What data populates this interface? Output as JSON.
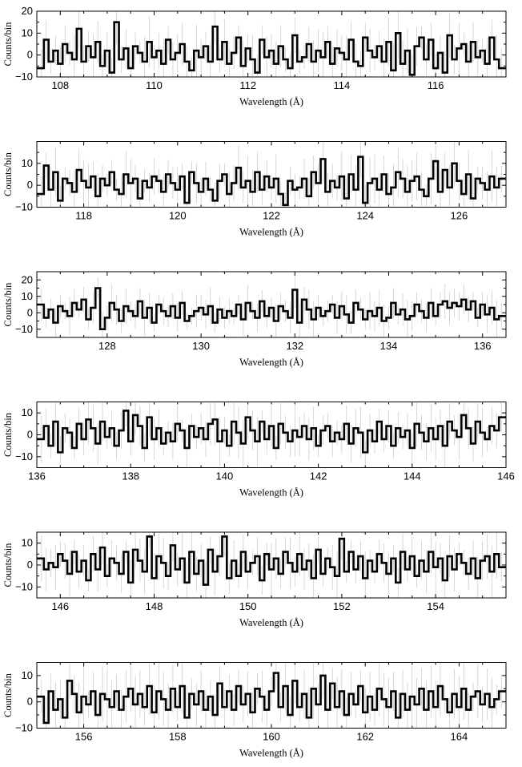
{
  "chart_data": [
    {
      "type": "line",
      "xlabel": "Wavelength (Å)",
      "ylabel": "Counts/bin",
      "xlim": [
        107.5,
        117.5
      ],
      "ylim": [
        -10,
        20
      ],
      "xticks": [
        108,
        110,
        112,
        114,
        116
      ],
      "yticks": [
        -10,
        0,
        10,
        20
      ],
      "ytick_labels": [
        "−10",
        "0",
        "10",
        "20"
      ],
      "x": [
        107.6,
        107.7,
        107.8,
        107.9,
        108.0,
        108.1,
        108.2,
        108.3,
        108.4,
        108.5,
        108.6,
        108.7,
        108.8,
        108.9,
        109.0,
        109.1,
        109.2,
        109.3,
        109.4,
        109.5,
        109.6,
        109.7,
        109.8,
        109.9,
        110.0,
        110.1,
        110.2,
        110.3,
        110.4,
        110.5,
        110.6,
        110.7,
        110.8,
        110.9,
        111.0,
        111.1,
        111.2,
        111.3,
        111.4,
        111.5,
        111.6,
        111.7,
        111.8,
        111.9,
        112.0,
        112.1,
        112.2,
        112.3,
        112.4,
        112.5,
        112.6,
        112.7,
        112.8,
        112.9,
        113.0,
        113.1,
        113.2,
        113.3,
        113.4,
        113.5,
        113.6,
        113.7,
        113.8,
        113.9,
        114.0,
        114.1,
        114.2,
        114.3,
        114.4,
        114.5,
        114.6,
        114.7,
        114.8,
        114.9,
        115.0,
        115.1,
        115.2,
        115.3,
        115.4,
        115.5,
        115.6,
        115.7,
        115.8,
        115.9,
        116.0,
        116.1,
        116.2,
        116.3,
        116.4,
        116.5,
        116.6,
        116.7,
        116.8,
        116.9,
        117.0,
        117.1,
        117.2,
        117.3,
        117.4
      ],
      "y": [
        -6,
        7,
        -3,
        2,
        -4,
        5,
        1,
        -2,
        12,
        -3,
        4,
        -1,
        6,
        -5,
        2,
        -8,
        15,
        -2,
        3,
        -6,
        4,
        1,
        -3,
        6,
        -1,
        2,
        -4,
        7,
        -2,
        1,
        5,
        -3,
        -7,
        2,
        -1,
        4,
        -3,
        13,
        -2,
        6,
        -4,
        1,
        8,
        -5,
        3,
        -2,
        -8,
        7,
        -1,
        2,
        -4,
        4,
        -2,
        -6,
        9,
        -3,
        -1,
        5,
        -3,
        2,
        -1,
        6,
        -4,
        3,
        1,
        -2,
        7,
        -3,
        -5,
        8,
        2,
        -1,
        4,
        -3,
        6,
        -7,
        10,
        -4,
        2,
        -9,
        4,
        8,
        -2,
        7,
        -6,
        1,
        -8,
        9,
        -2,
        3,
        5,
        -3,
        6,
        -1,
        2,
        -4,
        8,
        -2,
        -6
      ]
    },
    {
      "type": "line",
      "xlabel": "Wavelength (Å)",
      "ylabel": "Counts/bin",
      "xlim": [
        117,
        127
      ],
      "ylim": [
        -10,
        20
      ],
      "xticks": [
        118,
        120,
        122,
        124,
        126
      ],
      "yticks": [
        -10,
        0,
        10
      ],
      "ytick_labels": [
        "−10",
        "0",
        "10"
      ],
      "x": [
        117.1,
        117.2,
        117.3,
        117.4,
        117.5,
        117.6,
        117.7,
        117.8,
        117.9,
        118.0,
        118.1,
        118.2,
        118.3,
        118.4,
        118.5,
        118.6,
        118.7,
        118.8,
        118.9,
        119.0,
        119.1,
        119.2,
        119.3,
        119.4,
        119.5,
        119.6,
        119.7,
        119.8,
        119.9,
        120.0,
        120.1,
        120.2,
        120.3,
        120.4,
        120.5,
        120.6,
        120.7,
        120.8,
        120.9,
        121.0,
        121.1,
        121.2,
        121.3,
        121.4,
        121.5,
        121.6,
        121.7,
        121.8,
        121.9,
        122.0,
        122.1,
        122.2,
        122.3,
        122.4,
        122.5,
        122.6,
        122.7,
        122.8,
        122.9,
        123.0,
        123.1,
        123.2,
        123.3,
        123.4,
        123.5,
        123.6,
        123.7,
        123.8,
        123.9,
        124.0,
        124.1,
        124.2,
        124.3,
        124.4,
        124.5,
        124.6,
        124.7,
        124.8,
        124.9,
        125.0,
        125.1,
        125.2,
        125.3,
        125.4,
        125.5,
        125.6,
        125.7,
        125.8,
        125.9,
        126.0,
        126.1,
        126.2,
        126.3,
        126.4,
        126.5,
        126.6,
        126.7,
        126.8,
        126.9
      ],
      "y": [
        -4,
        9,
        -2,
        6,
        -7,
        3,
        1,
        -3,
        7,
        2,
        -1,
        4,
        -5,
        3,
        0,
        6,
        -2,
        -4,
        5,
        1,
        3,
        -6,
        2,
        -1,
        4,
        2,
        -3,
        5,
        1,
        -2,
        4,
        -8,
        6,
        1,
        -3,
        3,
        -2,
        -7,
        2,
        5,
        -4,
        1,
        8,
        -1,
        2,
        -3,
        6,
        -2,
        4,
        -1,
        3,
        -4,
        -9,
        2,
        -2,
        -1,
        3,
        -5,
        6,
        1,
        12,
        -3,
        2,
        -1,
        4,
        -6,
        5,
        -2,
        13,
        -8,
        1,
        3,
        -2,
        5,
        -4,
        -1,
        6,
        3,
        -3,
        2,
        4,
        -2,
        -5,
        3,
        11,
        -3,
        7,
        -1,
        10,
        2,
        -4,
        5,
        -6,
        3,
        1,
        -2,
        4,
        -1,
        3
      ]
    },
    {
      "type": "line",
      "xlabel": "Wavelength (Å)",
      "ylabel": "Counts/bin",
      "xlim": [
        126.5,
        136.5
      ],
      "ylim": [
        -15,
        25
      ],
      "xticks": [
        128,
        130,
        132,
        134,
        136
      ],
      "yticks": [
        -10,
        0,
        10,
        20
      ],
      "ytick_labels": [
        "−10",
        "0",
        "10",
        "20"
      ],
      "x": [
        126.6,
        126.7,
        126.8,
        126.9,
        127.0,
        127.1,
        127.2,
        127.3,
        127.4,
        127.5,
        127.6,
        127.7,
        127.8,
        127.9,
        128.0,
        128.1,
        128.2,
        128.3,
        128.4,
        128.5,
        128.6,
        128.7,
        128.8,
        128.9,
        129.0,
        129.1,
        129.2,
        129.3,
        129.4,
        129.5,
        129.6,
        129.7,
        129.8,
        129.9,
        130.0,
        130.1,
        130.2,
        130.3,
        130.4,
        130.5,
        130.6,
        130.7,
        130.8,
        130.9,
        131.0,
        131.1,
        131.2,
        131.3,
        131.4,
        131.5,
        131.6,
        131.7,
        131.8,
        131.9,
        132.0,
        132.1,
        132.2,
        132.3,
        132.4,
        132.5,
        132.6,
        132.7,
        132.8,
        132.9,
        133.0,
        133.1,
        133.2,
        133.3,
        133.4,
        133.5,
        133.6,
        133.7,
        133.8,
        133.9,
        134.0,
        134.1,
        134.2,
        134.3,
        134.4,
        134.5,
        134.6,
        134.7,
        134.8,
        134.9,
        135.0,
        135.1,
        135.2,
        135.3,
        135.4,
        135.5,
        135.6,
        135.7,
        135.8,
        135.9,
        136.0,
        136.1,
        136.2,
        136.3,
        136.4
      ],
      "y": [
        5,
        -3,
        2,
        -6,
        4,
        1,
        -2,
        6,
        2,
        8,
        -4,
        3,
        15,
        -10,
        -3,
        6,
        2,
        -5,
        4,
        1,
        -2,
        7,
        -3,
        3,
        -6,
        5,
        1,
        -2,
        4,
        -3,
        6,
        -5,
        -2,
        1,
        3,
        -1,
        4,
        -6,
        2,
        -3,
        1,
        -2,
        5,
        -4,
        6,
        1,
        -3,
        7,
        -2,
        3,
        -5,
        4,
        1,
        -3,
        14,
        -6,
        8,
        2,
        -4,
        3,
        -2,
        1,
        5,
        -3,
        4,
        -1,
        -6,
        6,
        2,
        -4,
        1,
        -2,
        3,
        -5,
        -3,
        6,
        -1,
        2,
        -4,
        -2,
        5,
        1,
        -3,
        6,
        -2,
        5,
        7,
        3,
        6,
        4,
        8,
        2,
        7,
        -3,
        5,
        -1,
        3,
        -4,
        -2
      ]
    },
    {
      "type": "line",
      "xlabel": "Wavelength (Å)",
      "ylabel": "Counts/bin",
      "xlim": [
        136,
        146
      ],
      "ylim": [
        -15,
        15
      ],
      "xticks": [
        136,
        138,
        140,
        142,
        144,
        146
      ],
      "yticks": [
        -10,
        0,
        10
      ],
      "ytick_labels": [
        "−10",
        "0",
        "10"
      ],
      "x": [
        136.1,
        136.2,
        136.3,
        136.4,
        136.5,
        136.6,
        136.7,
        136.8,
        136.9,
        137.0,
        137.1,
        137.2,
        137.3,
        137.4,
        137.5,
        137.6,
        137.7,
        137.8,
        137.9,
        138.0,
        138.1,
        138.2,
        138.3,
        138.4,
        138.5,
        138.6,
        138.7,
        138.8,
        138.9,
        139.0,
        139.1,
        139.2,
        139.3,
        139.4,
        139.5,
        139.6,
        139.7,
        139.8,
        139.9,
        140.0,
        140.1,
        140.2,
        140.3,
        140.4,
        140.5,
        140.6,
        140.7,
        140.8,
        140.9,
        141.0,
        141.1,
        141.2,
        141.3,
        141.4,
        141.5,
        141.6,
        141.7,
        141.8,
        141.9,
        142.0,
        142.1,
        142.2,
        142.3,
        142.4,
        142.5,
        142.6,
        142.7,
        142.8,
        142.9,
        143.0,
        143.1,
        143.2,
        143.3,
        143.4,
        143.5,
        143.6,
        143.7,
        143.8,
        143.9,
        144.0,
        144.1,
        144.2,
        144.3,
        144.4,
        144.5,
        144.6,
        144.7,
        144.8,
        144.9,
        145.0,
        145.1,
        145.2,
        145.3,
        145.4,
        145.5,
        145.6,
        145.7,
        145.8,
        145.9
      ],
      "y": [
        -2,
        4,
        -5,
        6,
        -8,
        3,
        1,
        -6,
        5,
        -2,
        7,
        3,
        -4,
        6,
        -1,
        3,
        -5,
        2,
        11,
        -3,
        9,
        4,
        -6,
        8,
        -2,
        3,
        -4,
        1,
        -3,
        5,
        2,
        -6,
        4,
        -1,
        3,
        -2,
        5,
        7,
        -3,
        2,
        -5,
        6,
        1,
        -4,
        8,
        2,
        -3,
        6,
        -2,
        4,
        -6,
        5,
        1,
        -3,
        2,
        -1,
        4,
        -2,
        3,
        -5,
        2,
        4,
        -3,
        1,
        -2,
        5,
        -4,
        3,
        1,
        -8,
        2,
        -3,
        6,
        -2,
        4,
        -5,
        3,
        -1,
        2,
        -6,
        5,
        1,
        -3,
        3,
        -2,
        4,
        -5,
        6,
        2,
        -1,
        9,
        3,
        -4,
        6,
        1,
        -2,
        4,
        2,
        8
      ]
    },
    {
      "type": "line",
      "xlabel": "Wavelength (Å)",
      "ylabel": "Counts/bin",
      "xlim": [
        145.5,
        155.5
      ],
      "ylim": [
        -15,
        15
      ],
      "xticks": [
        146,
        148,
        150,
        152,
        154
      ],
      "yticks": [
        -10,
        0,
        10
      ],
      "ytick_labels": [
        "−10",
        "0",
        "10"
      ],
      "x": [
        145.6,
        145.7,
        145.8,
        145.9,
        146.0,
        146.1,
        146.2,
        146.3,
        146.4,
        146.5,
        146.6,
        146.7,
        146.8,
        146.9,
        147.0,
        147.1,
        147.2,
        147.3,
        147.4,
        147.5,
        147.6,
        147.7,
        147.8,
        147.9,
        148.0,
        148.1,
        148.2,
        148.3,
        148.4,
        148.5,
        148.6,
        148.7,
        148.8,
        148.9,
        149.0,
        149.1,
        149.2,
        149.3,
        149.4,
        149.5,
        149.6,
        149.7,
        149.8,
        149.9,
        150.0,
        150.1,
        150.2,
        150.3,
        150.4,
        150.5,
        150.6,
        150.7,
        150.8,
        150.9,
        151.0,
        151.1,
        151.2,
        151.3,
        151.4,
        151.5,
        151.6,
        151.7,
        151.8,
        151.9,
        152.0,
        152.1,
        152.2,
        152.3,
        152.4,
        152.5,
        152.6,
        152.7,
        152.8,
        152.9,
        153.0,
        153.1,
        153.2,
        153.3,
        153.4,
        153.5,
        153.6,
        153.7,
        153.8,
        153.9,
        154.0,
        154.1,
        154.2,
        154.3,
        154.4,
        154.5,
        154.6,
        154.7,
        154.8,
        154.9,
        155.0,
        155.1,
        155.2,
        155.3,
        155.4
      ],
      "y": [
        3,
        -2,
        1,
        -1,
        5,
        2,
        -4,
        6,
        -3,
        2,
        -7,
        5,
        -2,
        8,
        -5,
        3,
        1,
        -4,
        6,
        -8,
        7,
        2,
        -3,
        13,
        -6,
        4,
        1,
        -5,
        9,
        -2,
        3,
        -8,
        6,
        -4,
        2,
        -9,
        7,
        -3,
        4,
        13,
        -6,
        2,
        -5,
        6,
        -3,
        1,
        4,
        -7,
        5,
        -2,
        3,
        -4,
        6,
        1,
        -3,
        5,
        -2,
        2,
        -6,
        7,
        -4,
        3,
        -1,
        -5,
        12,
        -3,
        6,
        -2,
        4,
        -6,
        2,
        -3,
        5,
        1,
        -4,
        3,
        -8,
        6,
        -2,
        4,
        -5,
        2,
        -3,
        6,
        -1,
        3,
        -7,
        4,
        -2,
        5,
        1,
        -4,
        3,
        -6,
        2,
        4,
        -3,
        5,
        -1
      ]
    },
    {
      "type": "line",
      "xlabel": "Wavelength (Å)",
      "ylabel": "Counts/bin",
      "xlim": [
        155,
        165
      ],
      "ylim": [
        -10,
        15
      ],
      "xticks": [
        156,
        158,
        160,
        162,
        164
      ],
      "yticks": [
        -10,
        0,
        10
      ],
      "ytick_labels": [
        "−10",
        "0",
        "10"
      ],
      "x": [
        155.1,
        155.2,
        155.3,
        155.4,
        155.5,
        155.6,
        155.7,
        155.8,
        155.9,
        156.0,
        156.1,
        156.2,
        156.3,
        156.4,
        156.5,
        156.6,
        156.7,
        156.8,
        156.9,
        157.0,
        157.1,
        157.2,
        157.3,
        157.4,
        157.5,
        157.6,
        157.7,
        157.8,
        157.9,
        158.0,
        158.1,
        158.2,
        158.3,
        158.4,
        158.5,
        158.6,
        158.7,
        158.8,
        158.9,
        159.0,
        159.1,
        159.2,
        159.3,
        159.4,
        159.5,
        159.6,
        159.7,
        159.8,
        159.9,
        160.0,
        160.1,
        160.2,
        160.3,
        160.4,
        160.5,
        160.6,
        160.7,
        160.8,
        160.9,
        161.0,
        161.1,
        161.2,
        161.3,
        161.4,
        161.5,
        161.6,
        161.7,
        161.8,
        161.9,
        162.0,
        162.1,
        162.2,
        162.3,
        162.4,
        162.5,
        162.6,
        162.7,
        162.8,
        162.9,
        163.0,
        163.1,
        163.2,
        163.3,
        163.4,
        163.5,
        163.6,
        163.7,
        163.8,
        163.9,
        164.0,
        164.1,
        164.2,
        164.3,
        164.4,
        164.5,
        164.6,
        164.7,
        164.8,
        164.9
      ],
      "y": [
        2,
        -8,
        4,
        -3,
        1,
        -6,
        8,
        3,
        -4,
        2,
        -1,
        4,
        -5,
        3,
        1,
        -2,
        4,
        -3,
        2,
        5,
        -1,
        3,
        -2,
        6,
        -4,
        4,
        1,
        -3,
        5,
        -2,
        6,
        -6,
        3,
        -1,
        4,
        -3,
        2,
        -5,
        7,
        -2,
        4,
        -3,
        6,
        -1,
        3,
        -4,
        5,
        2,
        -3,
        4,
        11,
        -2,
        6,
        -5,
        8,
        -2,
        3,
        -6,
        5,
        -1,
        10,
        -3,
        7,
        -2,
        4,
        -5,
        3,
        -1,
        6,
        -4,
        2,
        -3,
        5,
        1,
        -2,
        4,
        -6,
        3,
        -3,
        2,
        -1,
        5,
        -3,
        4,
        -2,
        6,
        1,
        -4,
        3,
        -2,
        5,
        -3,
        2,
        4,
        -1,
        3,
        -2,
        1,
        4
      ]
    }
  ]
}
